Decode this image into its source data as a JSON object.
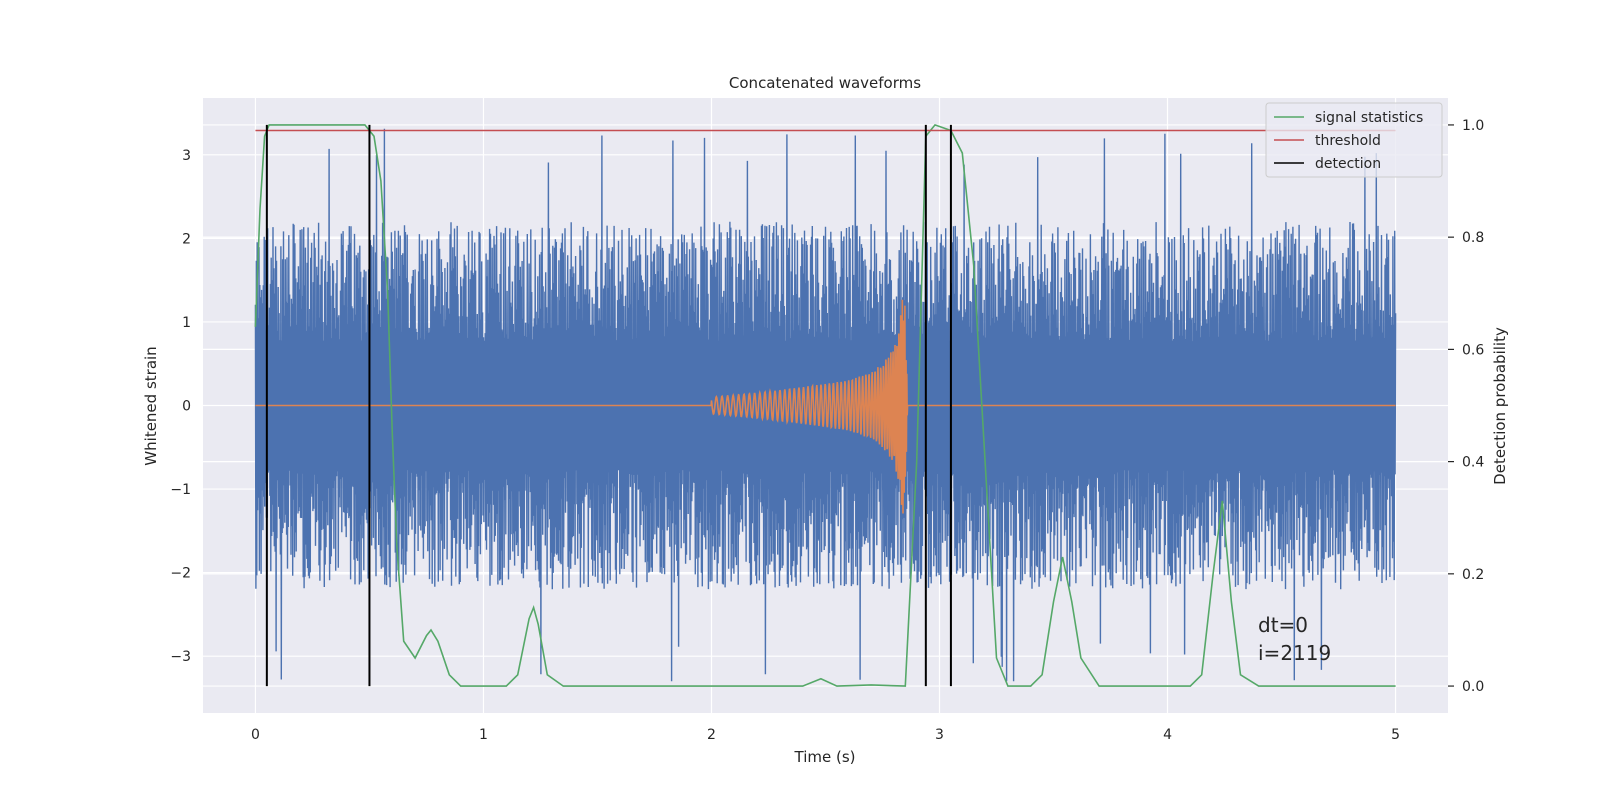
{
  "chart_data": {
    "type": "line",
    "title": "Concatenated waveforms",
    "xlabel": "Time (s)",
    "ylabel": "Whitened strain",
    "ylabel_right": "Detection probability",
    "xlim": [
      -0.23,
      5.23
    ],
    "ylim": [
      -3.68,
      3.68
    ],
    "ylim_right": [
      -0.048,
      1.048
    ],
    "x_ticks": [
      0,
      1,
      2,
      3,
      4,
      5
    ],
    "y_ticks": [
      -3,
      -2,
      -1,
      0,
      1,
      2,
      3
    ],
    "y_ticks_right": [
      0.0,
      0.2,
      0.4,
      0.6,
      0.8,
      1.0
    ],
    "x_tick_labels": [
      "0",
      "1",
      "2",
      "3",
      "4",
      "5"
    ],
    "y_tick_labels": [
      "−3",
      "−2",
      "−1",
      "0",
      "1",
      "2",
      "3"
    ],
    "y_tick_labels_right": [
      "0.0",
      "0.2",
      "0.4",
      "0.6",
      "0.8",
      "1.0"
    ],
    "grid": true,
    "legend_position": "top-right",
    "series": [
      {
        "axis": "left",
        "color": "#4c72b0",
        "description": "whitened noisy strain, 0 to 5 s",
        "x_range": [
          0,
          5
        ],
        "envelope": {
          "typical_peak": 2.2,
          "max": 3.35,
          "min": -3.3
        }
      },
      {
        "axis": "left",
        "color": "#dd8452",
        "description": "injected chirp template",
        "x": [
          0,
          2.0,
          2.2,
          2.4,
          2.6,
          2.7,
          2.75,
          2.8,
          2.82,
          2.84,
          2.85,
          2.86,
          5.0
        ],
        "amplitude": [
          0,
          0.1,
          0.15,
          0.22,
          0.3,
          0.4,
          0.5,
          0.7,
          0.9,
          1.35,
          1.2,
          0,
          0
        ]
      },
      {
        "name": "signal statistics",
        "axis": "right",
        "color": "#55a868",
        "x": [
          0,
          0.02,
          0.04,
          0.06,
          0.1,
          0.3,
          0.48,
          0.52,
          0.55,
          0.58,
          0.6,
          0.62,
          0.65,
          0.7,
          0.75,
          0.77,
          0.8,
          0.85,
          0.9,
          1.0,
          1.1,
          1.15,
          1.2,
          1.22,
          1.24,
          1.28,
          1.35,
          1.5,
          2.0,
          2.4,
          2.48,
          2.55,
          2.7,
          2.85,
          2.9,
          2.94,
          2.98,
          3.05,
          3.1,
          3.15,
          3.2,
          3.25,
          3.3,
          3.4,
          3.45,
          3.5,
          3.54,
          3.58,
          3.62,
          3.7,
          3.8,
          4.1,
          4.15,
          4.2,
          4.24,
          4.28,
          4.32,
          4.4,
          5.0
        ],
        "y": [
          0.64,
          0.85,
          0.98,
          1.0,
          1.0,
          1.0,
          1.0,
          0.98,
          0.9,
          0.7,
          0.45,
          0.25,
          0.08,
          0.05,
          0.09,
          0.1,
          0.08,
          0.02,
          0.0,
          0.0,
          0.0,
          0.02,
          0.12,
          0.14,
          0.11,
          0.02,
          0.0,
          0.0,
          0.0,
          0.0,
          0.013,
          0.0,
          0.002,
          0.0,
          0.4,
          0.98,
          1.0,
          0.99,
          0.95,
          0.75,
          0.4,
          0.05,
          0.0,
          0.0,
          0.02,
          0.15,
          0.23,
          0.15,
          0.05,
          0.0,
          0.0,
          0.0,
          0.02,
          0.2,
          0.33,
          0.15,
          0.02,
          0.0,
          0.0
        ]
      },
      {
        "name": "threshold",
        "axis": "right",
        "color": "#c44e52",
        "x": [
          0,
          5
        ],
        "y": [
          0.99,
          0.99
        ]
      },
      {
        "name": "detection",
        "axis": "right",
        "color": "#000000",
        "vertical_lines_x": [
          0.05,
          0.5,
          2.94,
          3.05
        ],
        "y_range": [
          0.0,
          1.0
        ]
      }
    ],
    "annotation_lines": [
      "dt=0",
      "i=2119"
    ]
  }
}
